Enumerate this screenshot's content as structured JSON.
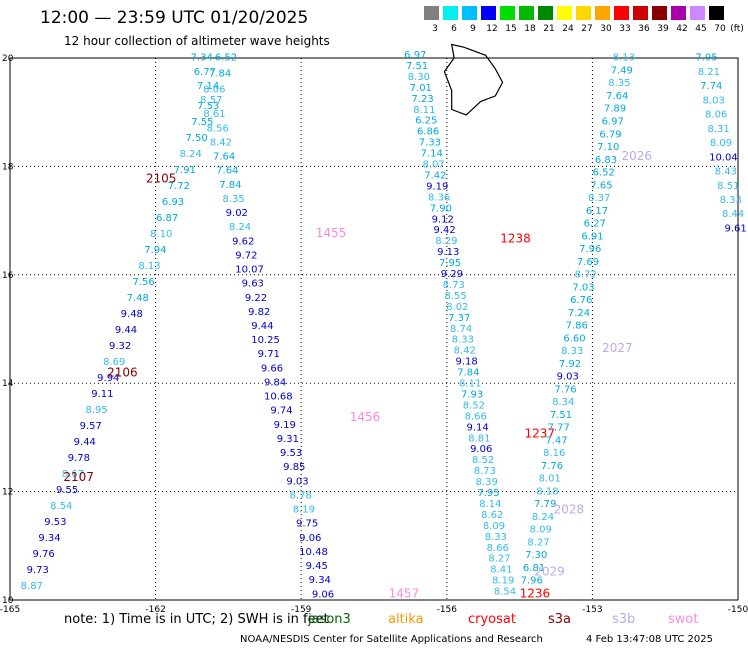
{
  "header": {
    "title": "12:00 — 23:59 UTC 01/20/2025",
    "subtitle": "12 hour collection of altimeter wave heights"
  },
  "legend": {
    "unit": "(ft)",
    "bins": [
      {
        "label": "3",
        "color": "#808080"
      },
      {
        "label": "6",
        "color": "#00eeee"
      },
      {
        "label": "9",
        "color": "#00bfff"
      },
      {
        "label": "12",
        "color": "#0000ff"
      },
      {
        "label": "15",
        "color": "#00dd00"
      },
      {
        "label": "18",
        "color": "#00bb00"
      },
      {
        "label": "21",
        "color": "#008800"
      },
      {
        "label": "24",
        "color": "#ffff00"
      },
      {
        "label": "27",
        "color": "#ffd700"
      },
      {
        "label": "30",
        "color": "#ffa500"
      },
      {
        "label": "33",
        "color": "#ff0000"
      },
      {
        "label": "36",
        "color": "#cc0000"
      },
      {
        "label": "39",
        "color": "#880000"
      },
      {
        "label": "42",
        "color": "#aa00aa"
      },
      {
        "label": "45",
        "color": "#cc88ff"
      },
      {
        "label": "70",
        "color": "#000000"
      }
    ]
  },
  "axes": {
    "x_ticks": [
      "-165",
      "-162",
      "-159",
      "-156",
      "-153",
      "-150"
    ],
    "y_ticks": [
      "20",
      "18",
      "16",
      "14",
      "12",
      "10"
    ]
  },
  "track_colors": {
    "light": "#00aadd",
    "dark": "#0000cc",
    "med": "#33bbee"
  },
  "tracks": [
    {
      "start_lon": -160.55,
      "start_lat": 19.95,
      "end_lon": -164.55,
      "end_lat": 10.2,
      "values": [
        "6.52",
        "7.84",
        "8.06",
        "7.53",
        "7.55",
        "7.50",
        "8.24",
        "7.91",
        "7.72",
        "6.93",
        "6.87",
        "8.10",
        "7.94",
        "8.13",
        "7.56",
        "7.48",
        "9.48",
        "9.44",
        "9.32",
        "8.69",
        "9.94",
        "9.11",
        "8.95",
        "9.57",
        "9.44",
        "9.78",
        "8.67",
        "9.55",
        "8.54",
        "9.53",
        "9.34",
        "9.76",
        "9.73",
        "8.87"
      ],
      "labels": [
        {
          "text": "2105",
          "lon": -162.2,
          "lat": 17.7,
          "color": "#880000"
        },
        {
          "text": "2106",
          "lon": -163.0,
          "lat": 14.12,
          "color": "#880000"
        },
        {
          "text": "2107",
          "lon": -163.9,
          "lat": 12.2,
          "color": "#880000"
        }
      ]
    },
    {
      "start_lon": -161.05,
      "start_lat": 19.95,
      "end_lon": -158.55,
      "end_lat": 10.05,
      "values": [
        "7.34",
        "6.77",
        "7.14",
        "8.57",
        "8.61",
        "8.56",
        "8.42",
        "7.64",
        "7.64",
        "7.84",
        "8.35",
        "9.02",
        "8.24",
        "9.62",
        "9.72",
        "10.07",
        "9.63",
        "9.22",
        "9.82",
        "9.44",
        "10.25",
        "9.71",
        "9.66",
        "9.84",
        "10.68",
        "9.74",
        "9.19",
        "9.31",
        "9.53",
        "9.85",
        "9.03",
        "8.78",
        "8.19",
        "9.75",
        "9.06",
        "10.48",
        "9.45",
        "9.34",
        "9.06"
      ],
      "labels": [
        {
          "text": "1455",
          "lon": -158.7,
          "lat": 16.7,
          "color": "#ff88dd"
        },
        {
          "text": "1456",
          "lon": -158.0,
          "lat": 13.3,
          "color": "#ff88dd"
        },
        {
          "text": "1457",
          "lon": -157.2,
          "lat": 10.05,
          "color": "#ff88dd"
        }
      ]
    },
    {
      "start_lon": -156.65,
      "start_lat": 20.0,
      "end_lon": -154.8,
      "end_lat": 10.1,
      "values": [
        "6.97",
        "7.51",
        "8.30",
        "7.01",
        "7.23",
        "8.11",
        "6.25",
        "6.86",
        "7.33",
        "7.14",
        "8.07",
        "7.42",
        "9.19",
        "8.36",
        "7.90",
        "9.12",
        "9.42",
        "8.29",
        "9.13",
        "7.95",
        "9.29",
        "8.73",
        "8.55",
        "8.02",
        "7.37",
        "8.74",
        "8.33",
        "8.42",
        "9.18",
        "7.84",
        "8.11",
        "7.93",
        "8.52",
        "8.66",
        "9.14",
        "8.81",
        "9.06",
        "8.52",
        "8.73",
        "8.39",
        "7.95",
        "8.14",
        "8.62",
        "8.09",
        "8.33",
        "8.66",
        "8.27",
        "8.41",
        "8.19",
        "8.54"
      ],
      "labels": [
        {
          "text": "1238",
          "lon": -154.9,
          "lat": 16.6,
          "color": "#ff0000"
        },
        {
          "text": "1237",
          "lon": -154.4,
          "lat": 13.0,
          "color": "#ff0000"
        },
        {
          "text": "1236",
          "lon": -154.5,
          "lat": 10.05,
          "color": "#ff0000"
        }
      ]
    },
    {
      "start_lon": -152.35,
      "start_lat": 19.95,
      "end_lon": -154.25,
      "end_lat": 10.3,
      "values": [
        "8.13",
        "7.49",
        "8.35",
        "7.64",
        "7.89",
        "6.97",
        "6.79",
        "7.10",
        "6.83",
        "6.52",
        "7.65",
        "8.37",
        "6.17",
        "6.27",
        "6.91",
        "7.96",
        "7.69",
        "8.72",
        "7.03",
        "6.76",
        "7.24",
        "7.86",
        "6.60",
        "8.33",
        "7.92",
        "9.03",
        "7.76",
        "8.34",
        "7.51",
        "7.77",
        "7.47",
        "8.16",
        "7.76",
        "8.01",
        "8.18",
        "7.79",
        "8.24",
        "8.09",
        "8.27",
        "7.30",
        "6.81",
        "7.96"
      ],
      "labels": [
        {
          "text": "2026",
          "lon": -152.4,
          "lat": 18.12,
          "color": "#bbaaee"
        },
        {
          "text": "2027",
          "lon": -152.8,
          "lat": 14.58,
          "color": "#bbaaee"
        },
        {
          "text": "2028",
          "lon": -153.8,
          "lat": 11.6,
          "color": "#bbaaee"
        },
        {
          "text": "2029",
          "lon": -154.2,
          "lat": 10.45,
          "color": "#bbaaee"
        }
      ]
    },
    {
      "start_lon": -150.65,
      "start_lat": 19.95,
      "end_lon": -150.05,
      "end_lat": 16.8,
      "values": [
        "7.95",
        "8.21",
        "7.74",
        "8.03",
        "8.06",
        "8.31",
        "8.09",
        "10.04",
        "8.43",
        "8.51",
        "8.33",
        "8.44",
        "9.61"
      ],
      "labels": []
    }
  ],
  "note": {
    "text": "note:  1) Time is in UTC;  2) SWH is in feet",
    "satellites": [
      {
        "name": "jason3",
        "color": "#006600"
      },
      {
        "name": "altika",
        "color": "#ff9900"
      },
      {
        "name": "cryosat",
        "color": "#ff0000"
      },
      {
        "name": "s3a",
        "color": "#880000"
      },
      {
        "name": "s3b",
        "color": "#bbaaee"
      },
      {
        "name": "swot",
        "color": "#ff88dd"
      }
    ]
  },
  "footer": {
    "credit": "NOAA/NESDIS Center for Satellite Applications and Research",
    "timestamp": "4 Feb 13:47:08 UTC 2025"
  }
}
